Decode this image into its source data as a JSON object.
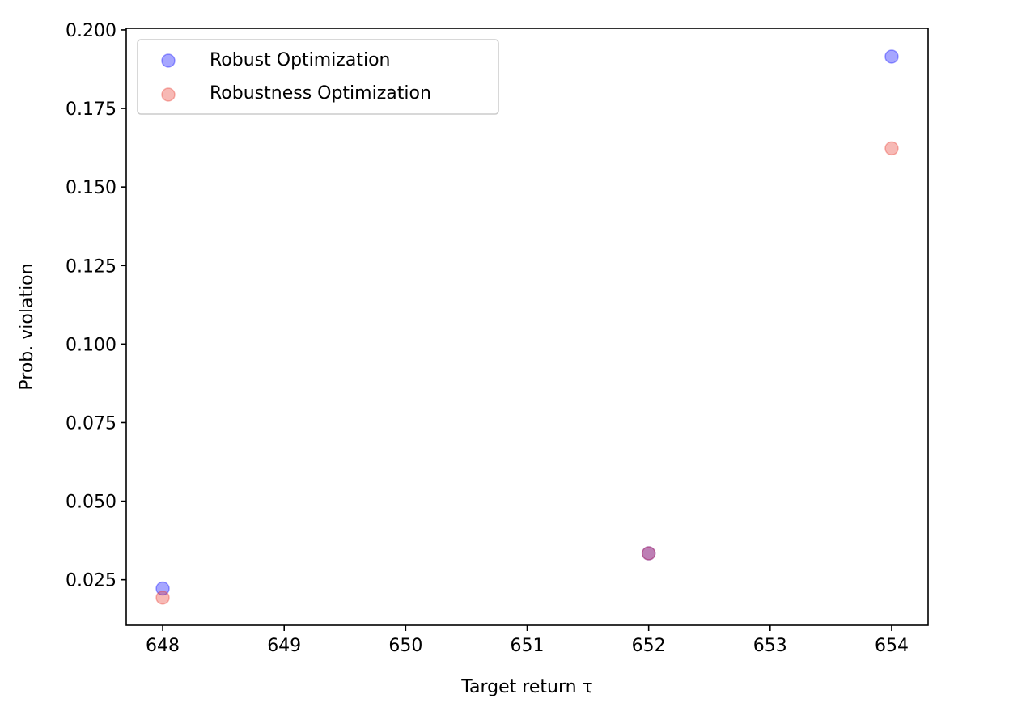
{
  "chart_data": {
    "type": "scatter",
    "title": "",
    "xlabel": "Target return τ",
    "ylabel": "Prob. violation",
    "xlim": [
      647.7,
      654.3
    ],
    "ylim": [
      0.0105,
      0.2005
    ],
    "x_ticks": [
      648,
      649,
      650,
      651,
      652,
      653,
      654
    ],
    "x_tick_labels": [
      "648",
      "649",
      "650",
      "651",
      "652",
      "653",
      "654"
    ],
    "y_ticks": [
      0.025,
      0.05,
      0.075,
      0.1,
      0.125,
      0.15,
      0.175,
      0.2
    ],
    "y_tick_labels": [
      "0.025",
      "0.050",
      "0.075",
      "0.100",
      "0.125",
      "0.150",
      "0.175",
      "0.200"
    ],
    "grid": false,
    "legend_position": "top-left",
    "series": [
      {
        "name": "Robust Optimization",
        "color": "#0000ff",
        "alpha": 0.35,
        "points": [
          {
            "x": 648,
            "y": 0.0222
          },
          {
            "x": 652,
            "y": 0.0334
          },
          {
            "x": 654,
            "y": 0.1915
          }
        ]
      },
      {
        "name": "Robustness Optimization",
        "color": "#e8372c",
        "alpha": 0.35,
        "points": [
          {
            "x": 648,
            "y": 0.0193
          },
          {
            "x": 652,
            "y": 0.0334
          },
          {
            "x": 654,
            "y": 0.1623
          }
        ]
      }
    ]
  }
}
